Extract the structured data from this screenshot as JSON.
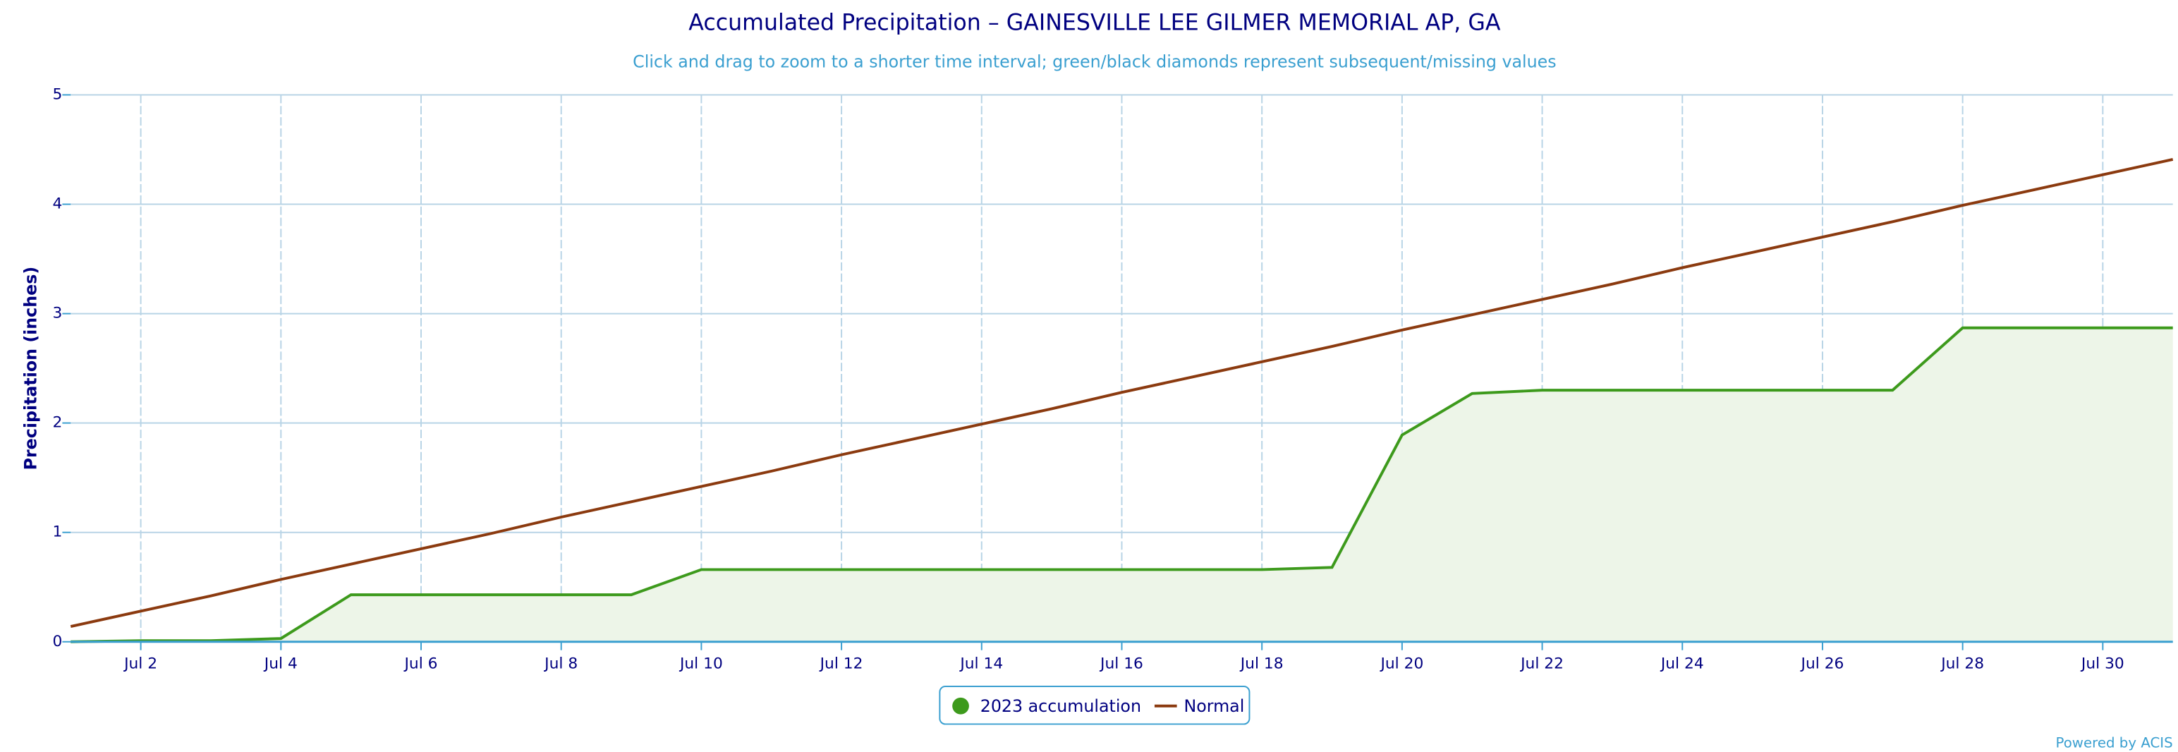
{
  "chart_data": {
    "type": "line",
    "title": "Accumulated Precipitation – GAINESVILLE LEE GILMER MEMORIAL AP, GA",
    "subtitle": "Click and drag to zoom to a shorter time interval; green/black diamonds represent subsequent/missing values",
    "y_label": "Precipitation (inches)",
    "categories": [
      null,
      "Jul 2",
      null,
      "Jul 4",
      null,
      "Jul 6",
      null,
      "Jul 8",
      null,
      "Jul 10",
      null,
      "Jul 12",
      null,
      "Jul 14",
      null,
      "Jul 16",
      null,
      "Jul 18",
      null,
      "Jul 20",
      null,
      "Jul 22",
      null,
      "Jul 24",
      null,
      "Jul 26",
      null,
      "Jul 28",
      null,
      "Jul 30",
      null
    ],
    "series": [
      {
        "name": "2023 accumulation",
        "color": "#3d9a1c",
        "fill": "#edf5e8",
        "values": [
          0,
          0.01,
          0.01,
          0.03,
          0.43,
          0.43,
          0.43,
          0.43,
          0.43,
          0.66,
          0.66,
          0.66,
          0.66,
          0.66,
          0.66,
          0.66,
          0.66,
          0.66,
          0.68,
          1.89,
          2.27,
          2.3,
          2.3,
          2.3,
          2.3,
          2.3,
          2.3,
          2.87,
          2.87,
          2.87,
          2.87
        ]
      },
      {
        "name": "Normal",
        "color": "#8b3a0f",
        "values": [
          0.14,
          0.28,
          0.42,
          0.57,
          0.71,
          0.85,
          0.99,
          1.14,
          1.28,
          1.42,
          1.56,
          1.71,
          1.85,
          1.99,
          2.13,
          2.28,
          2.42,
          2.56,
          2.7,
          2.85,
          2.99,
          3.13,
          3.27,
          3.42,
          3.56,
          3.7,
          3.84,
          3.99,
          4.13,
          4.27,
          4.41
        ]
      }
    ],
    "ylim": [
      0,
      5
    ],
    "yticks": [
      0,
      1,
      2,
      3,
      4,
      5
    ],
    "grid": true,
    "legend": "bottom",
    "credit": "Powered by ACIS"
  }
}
